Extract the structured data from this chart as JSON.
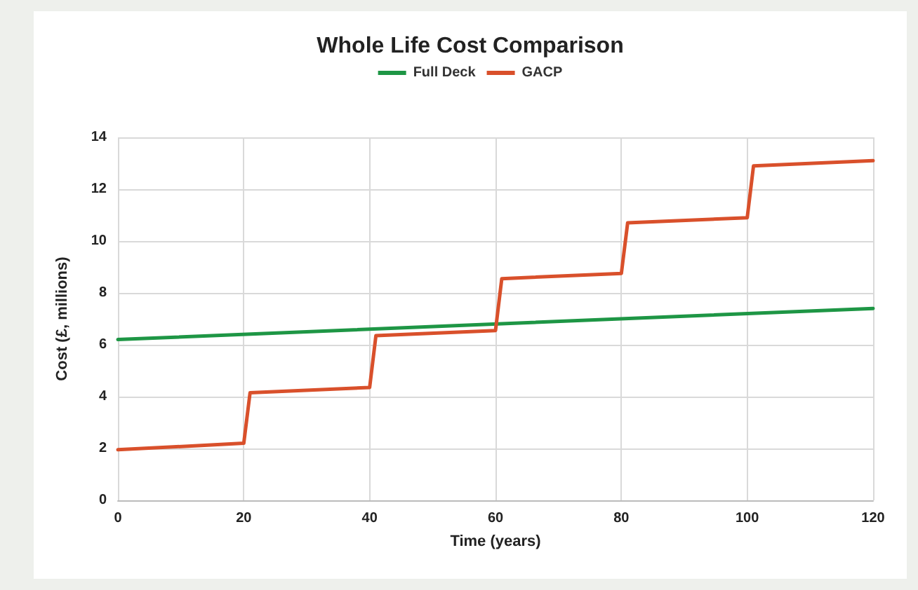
{
  "chart_data": {
    "type": "line",
    "title": "Whole Life Cost Comparison",
    "xlabel": "Time (years)",
    "ylabel": "Cost (£, millions)",
    "series": [
      {
        "name": "Full Deck",
        "color": "#1e9645",
        "x": [
          0,
          120
        ],
        "values": [
          6.2,
          7.4
        ]
      },
      {
        "name": "GACP",
        "color": "#d9502b",
        "x": [
          0,
          20,
          21,
          40,
          41,
          60,
          61,
          80,
          81,
          100,
          101,
          120
        ],
        "values": [
          1.95,
          2.2,
          4.15,
          4.35,
          6.35,
          6.55,
          8.55,
          8.75,
          10.7,
          10.9,
          12.9,
          13.1
        ]
      }
    ],
    "xlim": [
      0,
      120
    ],
    "xticks": [
      0,
      20,
      40,
      60,
      80,
      100,
      120
    ],
    "ylim": [
      0,
      14
    ],
    "yticks": [
      0,
      2,
      4,
      6,
      8,
      10,
      12,
      14
    ],
    "grid": true,
    "legend": "top",
    "marker": "none",
    "line_style": "solid"
  }
}
